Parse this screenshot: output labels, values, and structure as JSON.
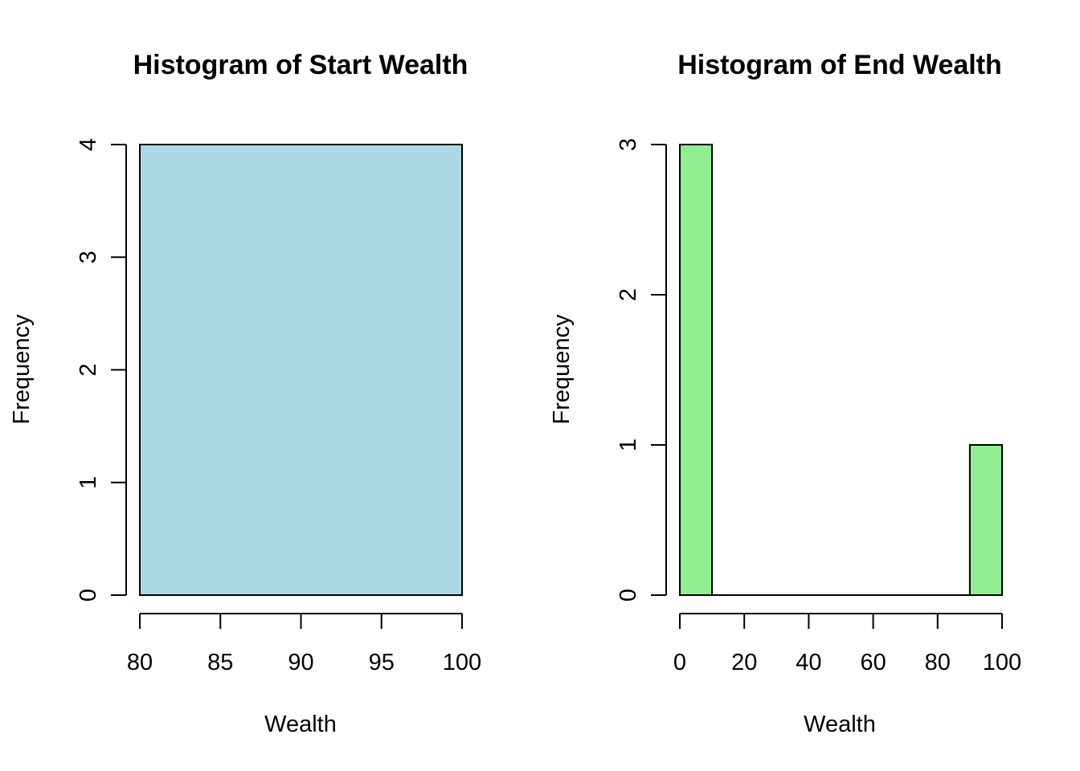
{
  "chart_data": [
    {
      "type": "bar",
      "title": "Histogram of Start Wealth",
      "xlabel": "Wealth",
      "ylabel": "Frequency",
      "bins": [
        {
          "start": 80,
          "end": 100,
          "count": 4
        }
      ],
      "xlim": [
        80,
        100
      ],
      "ylim": [
        0,
        4
      ],
      "x_ticks": [
        80,
        85,
        90,
        95,
        100
      ],
      "y_ticks": [
        0,
        1,
        2,
        3,
        4
      ],
      "bar_color": "#add8e6",
      "grid": false
    },
    {
      "type": "bar",
      "title": "Histogram of End Wealth",
      "xlabel": "Wealth",
      "ylabel": "Frequency",
      "bins": [
        {
          "start": 0,
          "end": 10,
          "count": 3
        },
        {
          "start": 10,
          "end": 20,
          "count": 0
        },
        {
          "start": 20,
          "end": 30,
          "count": 0
        },
        {
          "start": 30,
          "end": 40,
          "count": 0
        },
        {
          "start": 40,
          "end": 50,
          "count": 0
        },
        {
          "start": 50,
          "end": 60,
          "count": 0
        },
        {
          "start": 60,
          "end": 70,
          "count": 0
        },
        {
          "start": 70,
          "end": 80,
          "count": 0
        },
        {
          "start": 80,
          "end": 90,
          "count": 0
        },
        {
          "start": 90,
          "end": 100,
          "count": 1
        }
      ],
      "xlim": [
        0,
        100
      ],
      "ylim": [
        0,
        3
      ],
      "x_ticks": [
        0,
        20,
        40,
        60,
        80,
        100
      ],
      "y_ticks": [
        0,
        1,
        2,
        3
      ],
      "bar_color": "#90ee90",
      "grid": false
    }
  ]
}
